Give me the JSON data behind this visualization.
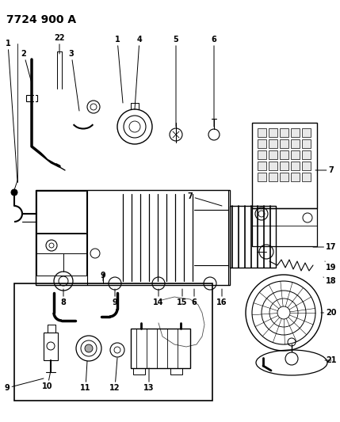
{
  "title": "7724 900 A",
  "bg_color": "#ffffff",
  "line_color": "#000000",
  "title_fontsize": 10,
  "label_fontsize": 7,
  "fig_width": 4.29,
  "fig_height": 5.33,
  "dpi": 100
}
